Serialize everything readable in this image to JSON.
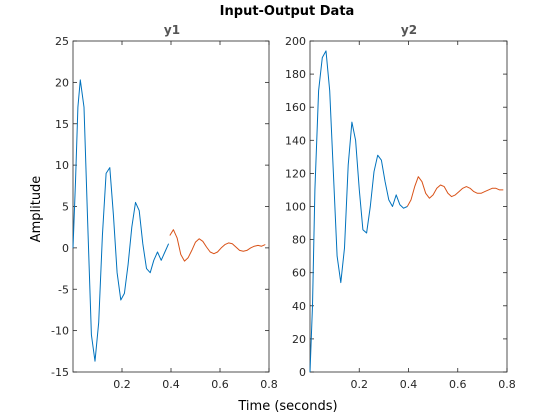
{
  "figure": {
    "title": "Input-Output Data",
    "xlabel": "Time (seconds)",
    "ylabel": "Amplitude"
  },
  "colors": {
    "estimation": "#0072BD",
    "validation": "#D95319",
    "axes": "#262626"
  },
  "chart_data": [
    {
      "type": "line",
      "title": "y1",
      "xlim": [
        0,
        0.8
      ],
      "ylim": [
        -15,
        25
      ],
      "xticks": [
        0.2,
        0.4,
        0.6,
        0.8
      ],
      "yticks": [
        -15,
        -10,
        -5,
        0,
        5,
        10,
        15,
        20,
        25
      ],
      "grid": false,
      "series": [
        {
          "segment": "estimation",
          "color": "#0072BD",
          "x": [
            0.0,
            0.01,
            0.02,
            0.03,
            0.045,
            0.06,
            0.075,
            0.09,
            0.105,
            0.12,
            0.135,
            0.15,
            0.165,
            0.18,
            0.195,
            0.21,
            0.225,
            0.24,
            0.255,
            0.27,
            0.285,
            0.3,
            0.315,
            0.33,
            0.345,
            0.36,
            0.375,
            0.39
          ],
          "y": [
            0,
            8,
            17,
            20.3,
            17,
            3,
            -10.5,
            -13.7,
            -9,
            1.5,
            9,
            9.7,
            4,
            -3,
            -6.3,
            -5.5,
            -2,
            2.5,
            5.5,
            4.5,
            0.5,
            -2.5,
            -3,
            -1.5,
            -0.5,
            -1.5,
            -0.5,
            0.5
          ]
        },
        {
          "segment": "validation",
          "color": "#D95319",
          "x": [
            0.395,
            0.41,
            0.425,
            0.44,
            0.455,
            0.47,
            0.485,
            0.5,
            0.515,
            0.53,
            0.545,
            0.56,
            0.575,
            0.59,
            0.605,
            0.62,
            0.635,
            0.65,
            0.665,
            0.68,
            0.695,
            0.71,
            0.725,
            0.74,
            0.755,
            0.77,
            0.785
          ],
          "y": [
            1.5,
            2.2,
            1.2,
            -0.8,
            -1.6,
            -1.2,
            -0.3,
            0.7,
            1.1,
            0.8,
            0.1,
            -0.5,
            -0.7,
            -0.5,
            0.0,
            0.4,
            0.6,
            0.5,
            0.1,
            -0.3,
            -0.4,
            -0.3,
            0.0,
            0.2,
            0.3,
            0.2,
            0.4
          ]
        }
      ]
    },
    {
      "type": "line",
      "title": "y2",
      "xlim": [
        0,
        0.8
      ],
      "ylim": [
        0,
        200
      ],
      "xticks": [
        0.2,
        0.4,
        0.6,
        0.8
      ],
      "yticks": [
        0,
        20,
        40,
        60,
        80,
        100,
        120,
        140,
        160,
        180,
        200
      ],
      "grid": false,
      "series": [
        {
          "segment": "estimation",
          "color": "#0072BD",
          "x": [
            0.0,
            0.01,
            0.02,
            0.035,
            0.05,
            0.065,
            0.08,
            0.095,
            0.11,
            0.125,
            0.14,
            0.155,
            0.17,
            0.185,
            0.2,
            0.215,
            0.23,
            0.245,
            0.26,
            0.275,
            0.29,
            0.305,
            0.32,
            0.335,
            0.35,
            0.365,
            0.38,
            0.395
          ],
          "y": [
            0,
            40,
            110,
            170,
            190,
            194,
            170,
            120,
            70,
            54,
            75,
            125,
            151,
            140,
            110,
            86,
            84,
            100,
            121,
            131,
            128,
            115,
            104,
            100,
            107,
            101,
            99,
            100
          ]
        },
        {
          "segment": "validation",
          "color": "#D95319",
          "x": [
            0.395,
            0.41,
            0.425,
            0.44,
            0.455,
            0.47,
            0.485,
            0.5,
            0.515,
            0.53,
            0.545,
            0.56,
            0.575,
            0.59,
            0.605,
            0.62,
            0.635,
            0.65,
            0.665,
            0.68,
            0.695,
            0.71,
            0.725,
            0.74,
            0.755,
            0.77,
            0.785
          ],
          "y": [
            100,
            104,
            112,
            118,
            115,
            108,
            105,
            107,
            111,
            113,
            112,
            108,
            106,
            107,
            109,
            111,
            112,
            111,
            109,
            108,
            108,
            109,
            110,
            111,
            111,
            110,
            110
          ]
        }
      ]
    }
  ]
}
